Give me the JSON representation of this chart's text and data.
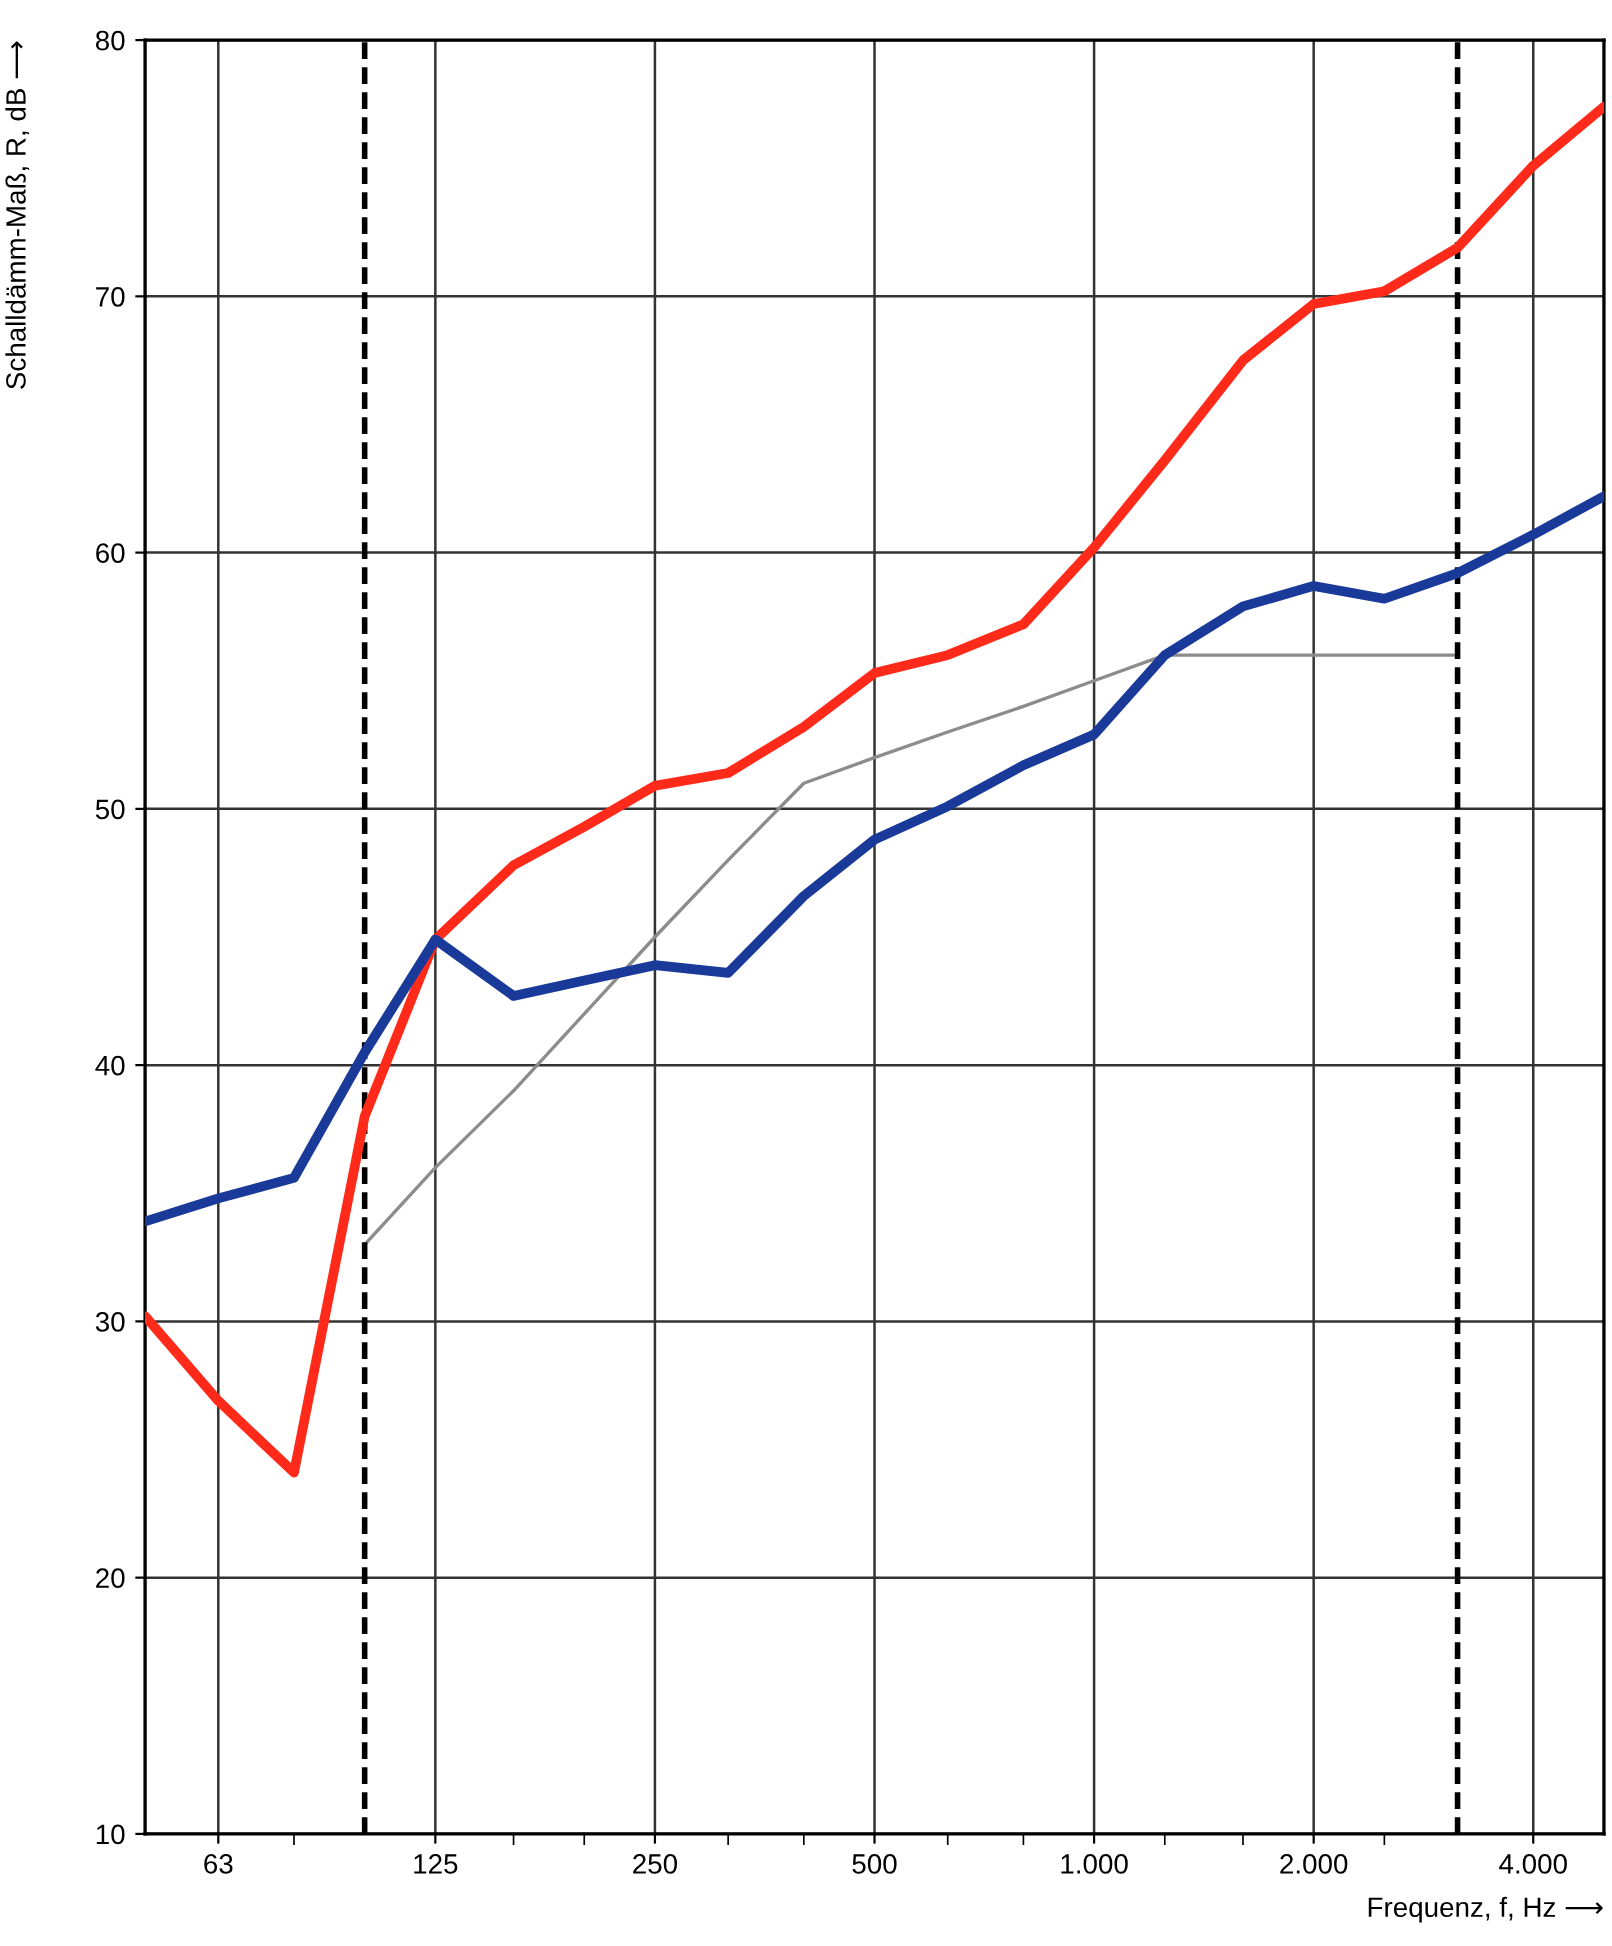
{
  "chart_data": {
    "type": "line",
    "xlabel": "Frequenz, f, Hz ⟶",
    "ylabel": "Schalldämm-Maß, R, dB ⟶",
    "log": "x",
    "grid": true,
    "marker": "none",
    "line_style": "solid",
    "xlim": [
      50,
      5000
    ],
    "ylim": [
      10,
      80
    ],
    "xticks": [
      {
        "value": 63,
        "label": "63"
      },
      {
        "value": 80,
        "label": null
      },
      {
        "value": 125,
        "label": "125"
      },
      {
        "value": 160,
        "label": null
      },
      {
        "value": 200,
        "label": null
      },
      {
        "value": 250,
        "label": "250"
      },
      {
        "value": 315,
        "label": null
      },
      {
        "value": 400,
        "label": null
      },
      {
        "value": 500,
        "label": "500"
      },
      {
        "value": 630,
        "label": null
      },
      {
        "value": 800,
        "label": null
      },
      {
        "value": 1000,
        "label": "1.000"
      },
      {
        "value": 1250,
        "label": null
      },
      {
        "value": 1600,
        "label": null
      },
      {
        "value": 2000,
        "label": "2.000"
      },
      {
        "value": 2500,
        "label": null
      },
      {
        "value": 4000,
        "label": "4.000"
      }
    ],
    "yticks": [
      10,
      20,
      30,
      40,
      50,
      60,
      70,
      80
    ],
    "series": [
      {
        "color": "#1a3a9a",
        "x": [
          50,
          63,
          80,
          100,
          125,
          160,
          200,
          250,
          315,
          400,
          500,
          630,
          800,
          1000,
          1250,
          1600,
          2000,
          2500,
          3150,
          4000,
          5000
        ],
        "values": [
          33.9,
          34.8,
          35.6,
          40.5,
          44.9,
          42.7,
          43.3,
          43.9,
          43.6,
          46.6,
          48.8,
          50.1,
          51.7,
          52.9,
          56.0,
          57.9,
          58.7,
          58.2,
          59.2,
          60.7,
          62.2
        ]
      },
      {
        "color": "#ff2a1a",
        "x": [
          50,
          63,
          80,
          100,
          125,
          160,
          200,
          250,
          315,
          400,
          500,
          630,
          800,
          1000,
          1250,
          1600,
          2000,
          2500,
          3150,
          4000,
          5000
        ],
        "values": [
          30.2,
          26.9,
          24.1,
          38.0,
          44.9,
          47.8,
          49.3,
          50.9,
          51.4,
          53.2,
          55.3,
          56.0,
          57.2,
          60.2,
          63.6,
          67.5,
          69.7,
          70.2,
          71.9,
          75.1,
          77.4
        ]
      },
      {
        "color": "#8c8c8c",
        "x": [
          100,
          125,
          160,
          200,
          250,
          315,
          400,
          500,
          630,
          800,
          1000,
          1250,
          1600,
          2000,
          2500,
          3150
        ],
        "values": [
          33,
          36,
          39,
          42,
          45,
          48,
          51,
          52,
          53,
          54,
          55,
          56,
          56,
          56,
          56,
          56
        ]
      }
    ],
    "ref_lines": [
      {
        "axis": "x",
        "value": 100,
        "color": "#000000",
        "line_style": "dashed"
      },
      {
        "axis": "x",
        "value": 3150,
        "color": "#000000",
        "line_style": "dashed"
      }
    ]
  }
}
